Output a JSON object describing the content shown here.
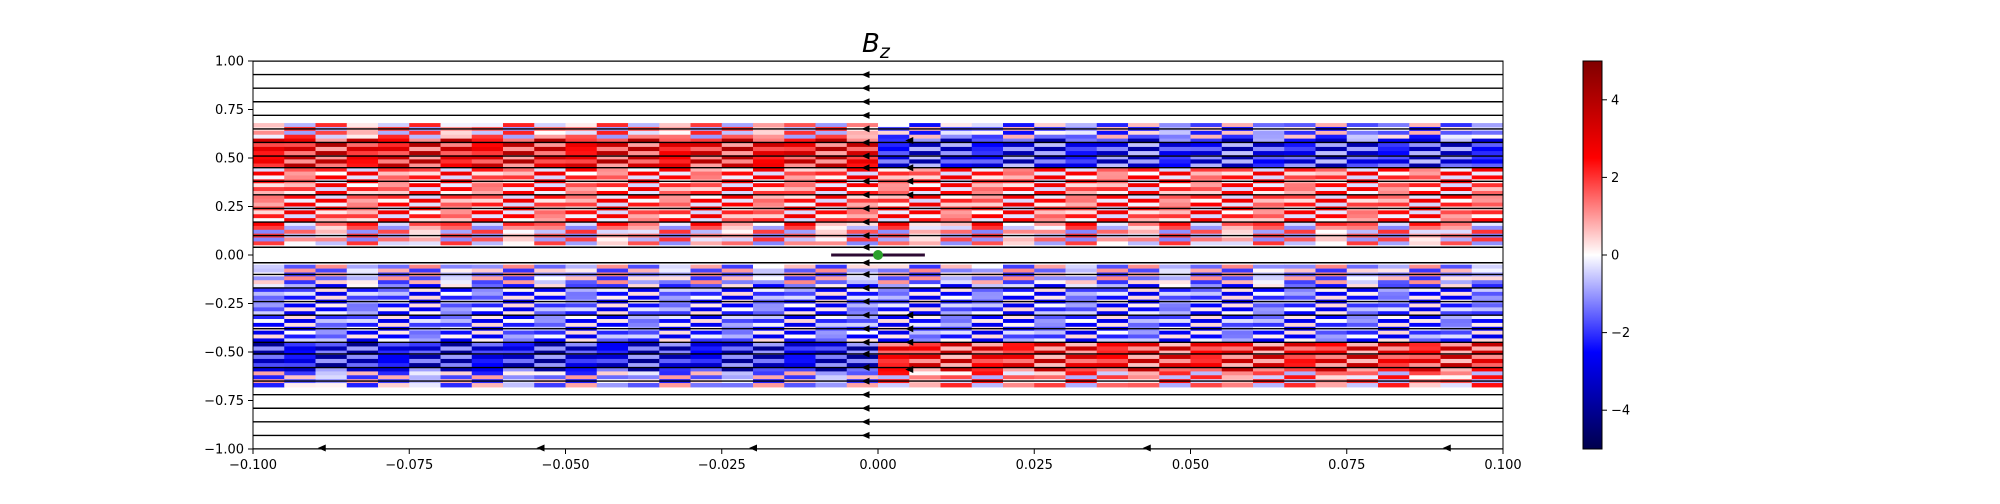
{
  "chart_data": {
    "type": "heatmap",
    "title_main": "B",
    "title_sub": "z",
    "xlim": [
      -0.1,
      0.1
    ],
    "ylim": [
      -1.0,
      1.0
    ],
    "xticks": [
      -0.1,
      -0.075,
      -0.05,
      -0.025,
      0.0,
      0.025,
      0.05,
      0.075,
      0.1
    ],
    "xtick_labels": [
      "−0.100",
      "−0.075",
      "−0.050",
      "−0.025",
      "0.000",
      "0.025",
      "0.050",
      "0.075",
      "0.100"
    ],
    "yticks": [
      1.0,
      0.75,
      0.5,
      0.25,
      0.0,
      -0.25,
      -0.5,
      -0.75,
      -1.0
    ],
    "ytick_labels": [
      "1.00",
      "0.75",
      "0.50",
      "0.25",
      "0.00",
      "−0.25",
      "−0.50",
      "−0.75",
      "−1.00"
    ],
    "colorbar": {
      "colormap": "seismic",
      "range": [
        -5,
        5
      ],
      "ticks": [
        4,
        2,
        0,
        -2,
        -4
      ],
      "tick_labels": [
        "4",
        "2",
        "0",
        "−2",
        "−4"
      ]
    },
    "field_lines_y": [
      1.0,
      0.93,
      0.86,
      0.79,
      0.72,
      0.65,
      0.58,
      0.51,
      0.45,
      0.38,
      0.31,
      0.24,
      0.17,
      0.1,
      0.04,
      -0.04,
      -0.1,
      -0.17,
      -0.24,
      -0.31,
      -0.38,
      -0.45,
      -0.51,
      -0.58,
      -0.65,
      -0.72,
      -0.79,
      -0.86,
      -0.93,
      -1.0
    ],
    "field_line_arrow_x": -0.002,
    "secondary_arrows": [
      {
        "x": 0.005,
        "y": 0.59
      },
      {
        "x": 0.005,
        "y": 0.45
      },
      {
        "x": 0.005,
        "y": 0.38
      },
      {
        "x": 0.005,
        "y": 0.31
      },
      {
        "x": 0.005,
        "y": -0.31
      },
      {
        "x": 0.005,
        "y": -0.38
      },
      {
        "x": 0.005,
        "y": -0.45
      },
      {
        "x": 0.005,
        "y": -0.59
      }
    ],
    "bottom_arrows_x": [
      -0.089,
      -0.054,
      -0.02,
      0.043,
      0.091
    ],
    "bz_bands": [
      {
        "y_top": 0.68,
        "y_bottom": 0.6,
        "value": 0.6
      },
      {
        "y_top": 0.6,
        "y_bottom": 0.45,
        "value": 2.5
      },
      {
        "y_top": 0.45,
        "y_bottom": 0.15,
        "value": 1.2
      },
      {
        "y_top": 0.15,
        "y_bottom": 0.05,
        "value": 0.4
      },
      {
        "y_top": 0.05,
        "y_bottom": -0.05,
        "value": 0.0
      },
      {
        "y_top": -0.05,
        "y_bottom": -0.15,
        "value": -0.4
      },
      {
        "y_top": -0.15,
        "y_bottom": -0.45,
        "value": -1.2
      },
      {
        "y_top": -0.45,
        "y_bottom": -0.6,
        "value": -2.5
      },
      {
        "y_top": -0.6,
        "y_bottom": -0.68,
        "value": -0.6
      }
    ],
    "bz_right_bands": [
      {
        "y_top": 0.68,
        "y_bottom": 0.6,
        "value": -0.8
      },
      {
        "y_top": 0.6,
        "y_bottom": 0.45,
        "value": -2.2
      },
      {
        "y_top": -0.45,
        "y_bottom": -0.6,
        "value": 2.2
      },
      {
        "y_top": -0.6,
        "y_bottom": -0.68,
        "value": 0.8
      }
    ],
    "center_bar": {
      "x_start": -0.0075,
      "x_end": 0.0075,
      "y": 0.0
    },
    "origin_marker": {
      "x": 0.0,
      "y": 0.0,
      "color": "#2ca02c"
    },
    "colors": {
      "field_line": "#000000",
      "center_bar": "#2d0a33",
      "cmap_dark_blue": "#00004c",
      "cmap_blue": "#0000ff",
      "cmap_white": "#ffffff",
      "cmap_red": "#ff0000",
      "cmap_dark_red": "#800000"
    }
  }
}
